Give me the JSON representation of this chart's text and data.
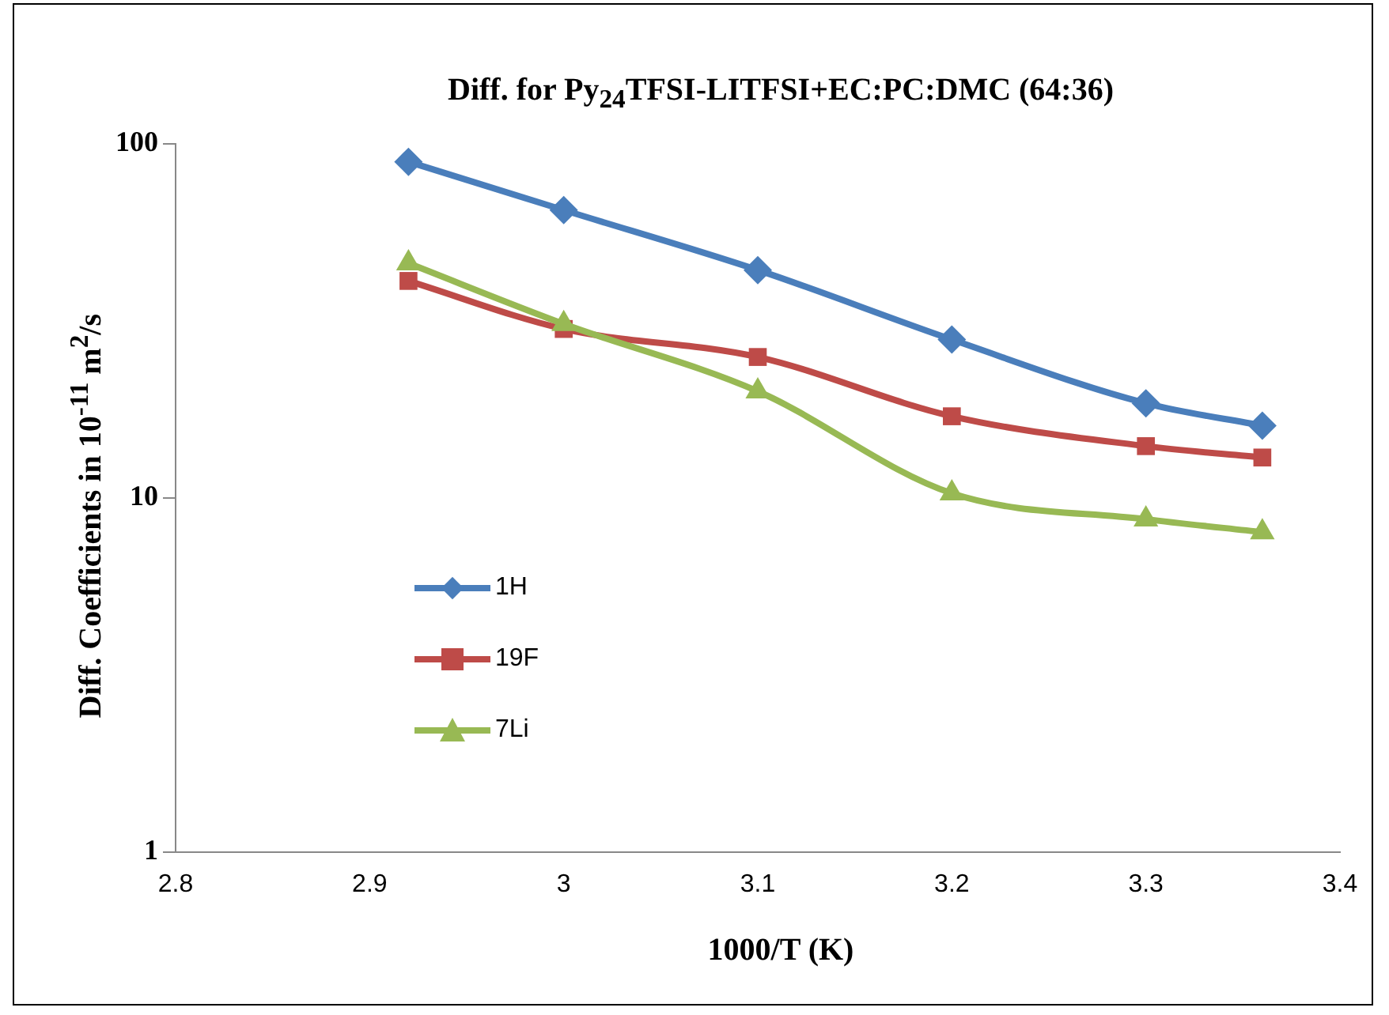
{
  "chart_data": {
    "type": "line",
    "title": "Diff. for Py$_{24}$TFSI-LITFSI+EC:PC:DMC  (64:36)",
    "xlabel": "1000/T (K)",
    "ylabel": "Diff. Coefficients in 10$^{-11}$ m$^{2}$/s",
    "x": [
      2.92,
      3.0,
      3.1,
      3.2,
      3.3,
      3.36
    ],
    "series": [
      {
        "name": "1H",
        "color": "#4a7ebb",
        "marker": "diamond",
        "values": [
          89,
          65,
          44,
          28,
          18.5,
          16
        ]
      },
      {
        "name": "19F",
        "color": "#be4b48",
        "marker": "square",
        "values": [
          41,
          30,
          25,
          17,
          14,
          13
        ]
      },
      {
        "name": "7Li",
        "color": "#98b954",
        "marker": "triangle",
        "values": [
          46,
          31,
          20,
          10.3,
          8.7,
          8
        ]
      }
    ],
    "log": "y",
    "xlim": [
      2.8,
      3.4
    ],
    "xticks": [
      2.8,
      2.9,
      3,
      3.1,
      3.2,
      3.3,
      3.4
    ],
    "ylim": [
      1,
      100
    ],
    "yticks": [
      1,
      10,
      100
    ],
    "grid": false,
    "legend": "left",
    "line_style": "solid"
  }
}
